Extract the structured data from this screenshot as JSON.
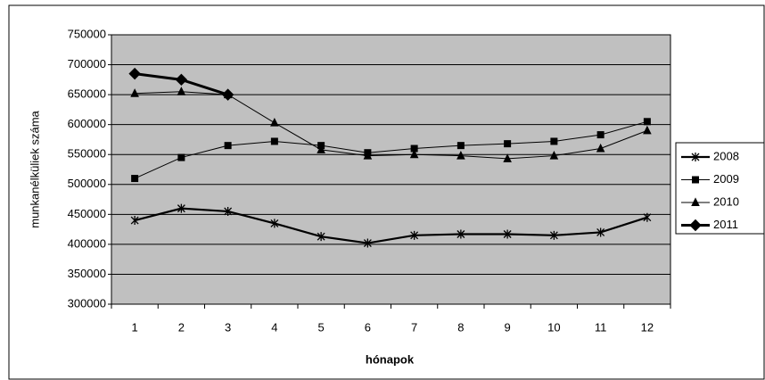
{
  "chart_data": {
    "type": "line",
    "x_label": "hónapok",
    "y_label": "munkanélküliek száma",
    "categories": [
      1,
      2,
      3,
      4,
      5,
      6,
      7,
      8,
      9,
      10,
      11,
      12
    ],
    "ylim": [
      300000,
      750000
    ],
    "yticks": [
      300000,
      350000,
      400000,
      450000,
      500000,
      550000,
      600000,
      650000,
      700000,
      750000
    ],
    "grid": true,
    "plot_background": "#c0c0c0",
    "legend": "right",
    "series": [
      {
        "name": "2008",
        "color": "#000000",
        "marker": "asterisk",
        "values": [
          440000,
          460000,
          455000,
          435000,
          413000,
          402000,
          415000,
          417000,
          417000,
          415000,
          420000,
          445000
        ]
      },
      {
        "name": "2009",
        "color": "#000000",
        "marker": "square",
        "values": [
          510000,
          545000,
          565000,
          572000,
          565000,
          553000,
          560000,
          565000,
          568000,
          572000,
          583000,
          605000
        ]
      },
      {
        "name": "2010",
        "color": "#000000",
        "marker": "triangle",
        "values": [
          652000,
          655000,
          650000,
          603000,
          558000,
          548000,
          550000,
          548000,
          543000,
          548000,
          560000,
          590000
        ]
      },
      {
        "name": "2011",
        "color": "#000000",
        "marker": "diamond",
        "values": [
          685000,
          675000,
          650000,
          null,
          null,
          null,
          null,
          null,
          null,
          null,
          null,
          null
        ]
      }
    ]
  }
}
